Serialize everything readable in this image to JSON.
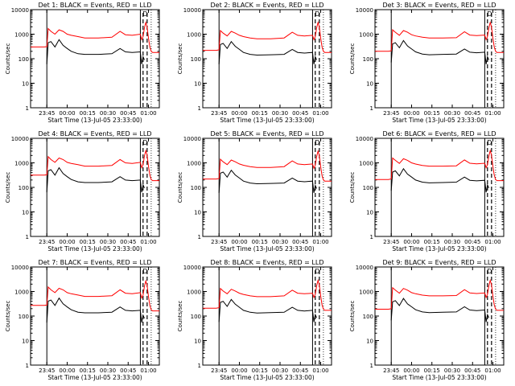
{
  "colors": {
    "events": "#000000",
    "lld": "#ff0000",
    "background": "#ffffff",
    "axes": "#000000"
  },
  "panels": [
    {
      "title": "Det 1: BLACK = Events, RED = LLD",
      "xlabel": "Start Time (13-Jul-05 23:33:00)",
      "ylabel": "Counts/sec"
    },
    {
      "title": "Det 2: BLACK = Events, RED = LLD",
      "xlabel": "Start Time (13-Jul-05 23:33:00)",
      "ylabel": "Counts/sec"
    },
    {
      "title": "Det 3: BLACK = Events, RED = LLD",
      "xlabel": "Start Time (13-Jul-05 23:33:00)",
      "ylabel": "Counts/sec"
    },
    {
      "title": "Det 4: BLACK = Events, RED = LLD",
      "xlabel": "Start Time (13-Jul-05 23:33:00)",
      "ylabel": "Counts/sec"
    },
    {
      "title": "Det 5: BLACK = Events, RED = LLD",
      "xlabel": "Start Time (13-Jul-05 23:33:00)",
      "ylabel": "Counts/sec"
    },
    {
      "title": "Det 6: BLACK = Events, RED = LLD",
      "xlabel": "Start Time (13-Jul-05 23:33:00)",
      "ylabel": "Counts/sec"
    },
    {
      "title": "Det 7: BLACK = Events, RED = LLD",
      "xlabel": "Start Time (13-Jul-05 23:33:00)",
      "ylabel": "Counts/sec"
    },
    {
      "title": "Det 8: BLACK = Events, RED = LLD",
      "xlabel": "Start Time (13-Jul-05 23:33:00)",
      "ylabel": "Counts/sec"
    },
    {
      "title": "Det 9: BLACK = Events, RED = LLD",
      "xlabel": "Start Time (13-Jul-05 23:33:00)",
      "ylabel": "Counts/sec"
    }
  ],
  "chart_data": {
    "type": "line",
    "layout": "3x3 grid",
    "shared_axes": {
      "x_unit": "minutes from 23:33:00",
      "xlim": [
        0,
        95
      ],
      "xticks": [
        12,
        27,
        42,
        57,
        72,
        87
      ],
      "xtick_labels": [
        "23:45",
        "00:00",
        "00:15",
        "00:30",
        "00:45",
        "01:00"
      ],
      "yscale": "log",
      "ylim": [
        1,
        10000
      ],
      "yticks": [
        1,
        10,
        100,
        1000,
        10000
      ],
      "ytick_labels": [
        "1",
        "10",
        "100",
        "1000",
        "10000"
      ],
      "annotation": "D",
      "solid_vlines": [
        12,
        81
      ],
      "dashed_vlines": [
        83,
        86
      ]
    },
    "series_def": [
      {
        "name": "Events",
        "color": "#000000"
      },
      {
        "name": "LLD",
        "color": "#ff0000"
      }
    ],
    "profiles": [
      {
        "x": [
          0,
          8,
          10,
          12,
          13,
          15,
          18,
          21,
          24,
          27,
          30,
          35,
          40,
          50,
          60,
          66,
          70,
          75,
          81
        ],
        "events": [
          null,
          null,
          null,
          60,
          450,
          500,
          300,
          600,
          350,
          260,
          200,
          160,
          150,
          150,
          160,
          260,
          190,
          180,
          190
        ],
        "lld": [
          300,
          300,
          300,
          310,
          1700,
          1300,
          1000,
          1500,
          1300,
          1000,
          900,
          800,
          700,
          700,
          750,
          1300,
          950,
          900,
          1000
        ]
      },
      {
        "x": [
          0,
          8,
          10,
          12,
          13,
          15,
          18,
          21,
          24,
          27,
          30,
          35,
          40,
          50,
          60,
          66,
          70,
          75,
          81
        ],
        "events": [
          null,
          null,
          null,
          60,
          380,
          420,
          260,
          500,
          320,
          240,
          180,
          150,
          140,
          145,
          150,
          240,
          180,
          170,
          180
        ],
        "lld": [
          220,
          220,
          220,
          230,
          1400,
          1100,
          850,
          1300,
          1100,
          900,
          800,
          700,
          650,
          650,
          700,
          1200,
          900,
          850,
          900
        ]
      },
      {
        "x": [
          0,
          8,
          10,
          12,
          13,
          15,
          18,
          21,
          24,
          27,
          30,
          35,
          40,
          50,
          60,
          66,
          70,
          75,
          81
        ],
        "events": [
          null,
          null,
          null,
          70,
          400,
          450,
          280,
          550,
          330,
          250,
          190,
          155,
          145,
          150,
          155,
          250,
          185,
          175,
          185
        ],
        "lld": [
          200,
          200,
          200,
          210,
          1500,
          1200,
          900,
          1400,
          1200,
          950,
          850,
          750,
          700,
          700,
          720,
          1250,
          920,
          870,
          920
        ]
      }
    ],
    "lld_tail": {
      "x": [
        81,
        82,
        83,
        84,
        85,
        86,
        87,
        88,
        89,
        90,
        95
      ],
      "y": [
        900,
        600,
        800,
        1800,
        3000,
        2000,
        700,
        300,
        200,
        180,
        180
      ]
    },
    "events_tail": {
      "x": [
        81,
        82,
        83,
        84,
        85,
        86,
        88,
        90,
        95
      ],
      "y": [
        150,
        60,
        120,
        90,
        null,
        null,
        null,
        null,
        null
      ]
    },
    "panel_profile": [
      0,
      1,
      2,
      0,
      1,
      2,
      0,
      1,
      2
    ],
    "panel_scale": [
      1.0,
      1.0,
      1.0,
      1.05,
      1.0,
      1.05,
      0.9,
      0.95,
      0.95
    ]
  }
}
